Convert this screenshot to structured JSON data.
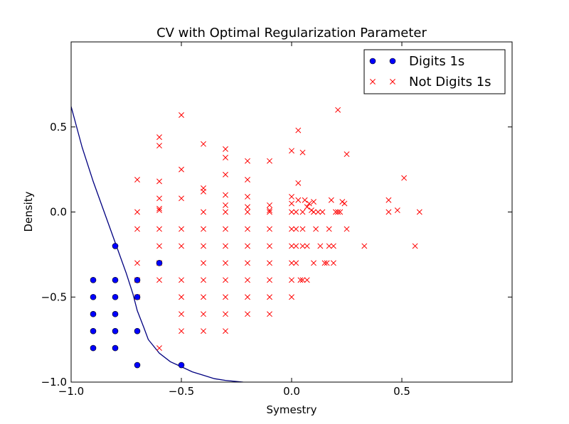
{
  "chart_data": {
    "type": "scatter",
    "title": "CV with Optimal Regularization Parameter",
    "xlabel": "Symestry",
    "ylabel": "Density",
    "xlim": [
      -1.0,
      1.0
    ],
    "ylim": [
      -1.0,
      1.0
    ],
    "xticks": [
      "−1.0",
      "−0.5",
      "0.0",
      "0.5"
    ],
    "xtick_values": [
      -1.0,
      -0.5,
      0.0,
      0.5
    ],
    "yticks": [
      "−1.0",
      "−0.5",
      "0.0",
      "0.5"
    ],
    "ytick_values": [
      -1.0,
      -0.5,
      0.0,
      0.5
    ],
    "grid": false,
    "legend": {
      "placement": "top-right"
    },
    "series": [
      {
        "name": "Digits 1s",
        "marker": "circle",
        "color": "#0000ff",
        "points": [
          [
            -0.9,
            -0.4
          ],
          [
            -0.9,
            -0.5
          ],
          [
            -0.9,
            -0.6
          ],
          [
            -0.9,
            -0.7
          ],
          [
            -0.9,
            -0.8
          ],
          [
            -0.8,
            -0.2
          ],
          [
            -0.8,
            -0.4
          ],
          [
            -0.8,
            -0.5
          ],
          [
            -0.8,
            -0.6
          ],
          [
            -0.8,
            -0.7
          ],
          [
            -0.8,
            -0.8
          ],
          [
            -0.7,
            -0.4
          ],
          [
            -0.7,
            -0.5
          ],
          [
            -0.7,
            -0.7
          ],
          [
            -0.7,
            -0.9
          ],
          [
            -0.6,
            -0.3
          ],
          [
            -0.5,
            -0.9
          ]
        ]
      },
      {
        "name": "Not Digits 1s",
        "marker": "x",
        "color": "#ff0000",
        "points": [
          [
            -0.7,
            0.19
          ],
          [
            -0.7,
            0.0
          ],
          [
            -0.7,
            -0.1
          ],
          [
            -0.7,
            -0.3
          ],
          [
            -0.7,
            -0.4
          ],
          [
            -0.7,
            -0.5
          ],
          [
            -0.6,
            0.44
          ],
          [
            -0.6,
            0.39
          ],
          [
            -0.6,
            0.18
          ],
          [
            -0.6,
            0.08
          ],
          [
            -0.6,
            0.02
          ],
          [
            -0.6,
            0.01
          ],
          [
            -0.6,
            -0.1
          ],
          [
            -0.6,
            -0.2
          ],
          [
            -0.6,
            -0.3
          ],
          [
            -0.6,
            -0.4
          ],
          [
            -0.6,
            -0.8
          ],
          [
            -0.5,
            0.57
          ],
          [
            -0.5,
            0.25
          ],
          [
            -0.5,
            0.08
          ],
          [
            -0.5,
            -0.1
          ],
          [
            -0.5,
            -0.2
          ],
          [
            -0.5,
            -0.4
          ],
          [
            -0.5,
            -0.5
          ],
          [
            -0.5,
            -0.6
          ],
          [
            -0.5,
            -0.7
          ],
          [
            -0.4,
            0.4
          ],
          [
            -0.4,
            0.14
          ],
          [
            -0.4,
            0.12
          ],
          [
            -0.4,
            0.0
          ],
          [
            -0.4,
            -0.1
          ],
          [
            -0.4,
            -0.2
          ],
          [
            -0.4,
            -0.3
          ],
          [
            -0.4,
            -0.4
          ],
          [
            -0.4,
            -0.5
          ],
          [
            -0.4,
            -0.6
          ],
          [
            -0.4,
            -0.7
          ],
          [
            -0.3,
            0.37
          ],
          [
            -0.3,
            0.32
          ],
          [
            -0.3,
            0.22
          ],
          [
            -0.3,
            0.1
          ],
          [
            -0.3,
            0.04
          ],
          [
            -0.3,
            0.0
          ],
          [
            -0.3,
            -0.1
          ],
          [
            -0.3,
            -0.2
          ],
          [
            -0.3,
            -0.3
          ],
          [
            -0.3,
            -0.4
          ],
          [
            -0.3,
            -0.5
          ],
          [
            -0.3,
            -0.6
          ],
          [
            -0.3,
            -0.7
          ],
          [
            -0.2,
            0.3
          ],
          [
            -0.2,
            0.19
          ],
          [
            -0.2,
            0.09
          ],
          [
            -0.2,
            0.03
          ],
          [
            -0.2,
            0.0
          ],
          [
            -0.2,
            -0.1
          ],
          [
            -0.2,
            -0.2
          ],
          [
            -0.2,
            -0.3
          ],
          [
            -0.2,
            -0.4
          ],
          [
            -0.2,
            -0.5
          ],
          [
            -0.2,
            -0.6
          ],
          [
            -0.1,
            0.3
          ],
          [
            -0.1,
            0.04
          ],
          [
            -0.1,
            0.01
          ],
          [
            -0.1,
            0.0
          ],
          [
            -0.1,
            -0.1
          ],
          [
            -0.1,
            -0.2
          ],
          [
            -0.1,
            -0.3
          ],
          [
            -0.1,
            -0.4
          ],
          [
            -0.1,
            -0.5
          ],
          [
            -0.1,
            -0.6
          ],
          [
            0.0,
            0.36
          ],
          [
            0.0,
            0.09
          ],
          [
            0.0,
            0.05
          ],
          [
            0.0,
            0.0
          ],
          [
            0.0,
            -0.1
          ],
          [
            0.0,
            -0.2
          ],
          [
            0.0,
            -0.3
          ],
          [
            0.0,
            -0.4
          ],
          [
            0.0,
            -0.5
          ],
          [
            0.02,
            0.0
          ],
          [
            0.02,
            -0.1
          ],
          [
            0.02,
            -0.2
          ],
          [
            0.02,
            -0.3
          ],
          [
            0.03,
            0.48
          ],
          [
            0.03,
            0.17
          ],
          [
            0.03,
            0.07
          ],
          [
            0.04,
            -0.4
          ],
          [
            0.05,
            0.35
          ],
          [
            0.05,
            0.0
          ],
          [
            0.05,
            -0.1
          ],
          [
            0.05,
            -0.2
          ],
          [
            0.05,
            -0.4
          ],
          [
            0.06,
            0.07
          ],
          [
            0.07,
            0.03
          ],
          [
            0.07,
            -0.2
          ],
          [
            0.07,
            -0.4
          ],
          [
            0.08,
            0.05
          ],
          [
            0.09,
            0.01
          ],
          [
            0.1,
            0.06
          ],
          [
            0.1,
            0.0
          ],
          [
            0.1,
            -0.3
          ],
          [
            0.11,
            -0.1
          ],
          [
            0.12,
            0.0
          ],
          [
            0.13,
            -0.2
          ],
          [
            0.14,
            0.0
          ],
          [
            0.15,
            -0.3
          ],
          [
            0.16,
            -0.3
          ],
          [
            0.17,
            -0.1
          ],
          [
            0.17,
            -0.2
          ],
          [
            0.18,
            0.07
          ],
          [
            0.19,
            -0.2
          ],
          [
            0.19,
            -0.3
          ],
          [
            0.2,
            0.0
          ],
          [
            0.21,
            0.6
          ],
          [
            0.21,
            0.0
          ],
          [
            0.22,
            0.0
          ],
          [
            0.23,
            0.06
          ],
          [
            0.24,
            0.05
          ],
          [
            0.25,
            0.34
          ],
          [
            0.25,
            -0.1
          ],
          [
            0.33,
            -0.2
          ],
          [
            0.44,
            0.07
          ],
          [
            0.44,
            0.0
          ],
          [
            0.48,
            0.01
          ],
          [
            0.51,
            0.2
          ],
          [
            0.56,
            -0.2
          ],
          [
            0.58,
            0.0
          ]
        ]
      }
    ],
    "boundary": {
      "color": "#000080",
      "points": [
        [
          -1.0,
          0.62
        ],
        [
          -0.95,
          0.38
        ],
        [
          -0.9,
          0.18
        ],
        [
          -0.85,
          0.0
        ],
        [
          -0.8,
          -0.18
        ],
        [
          -0.75,
          -0.36
        ],
        [
          -0.72,
          -0.48
        ],
        [
          -0.7,
          -0.58
        ],
        [
          -0.67,
          -0.68
        ],
        [
          -0.65,
          -0.75
        ],
        [
          -0.6,
          -0.83
        ],
        [
          -0.55,
          -0.88
        ],
        [
          -0.5,
          -0.91
        ],
        [
          -0.45,
          -0.94
        ],
        [
          -0.4,
          -0.96
        ],
        [
          -0.35,
          -0.98
        ],
        [
          -0.3,
          -0.99
        ],
        [
          -0.22,
          -1.0
        ]
      ]
    }
  }
}
